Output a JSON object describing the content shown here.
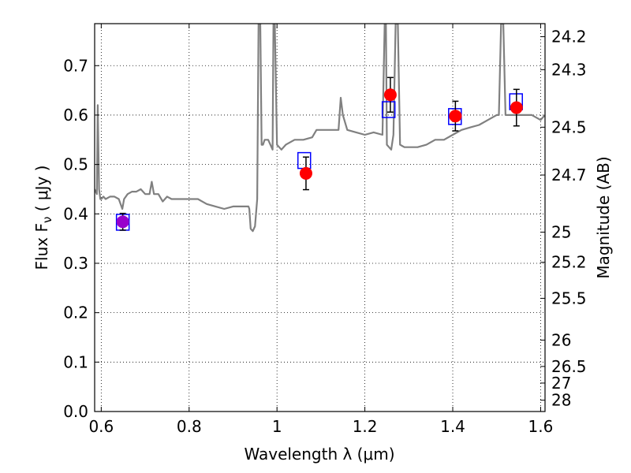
{
  "chart_data": {
    "type": "scatter",
    "title": "",
    "xlabel": "Wavelength  λ (μm)",
    "ylabel": "Flux  F_ν  ( μJy )",
    "ylabel_right": "Magnitude (AB)",
    "xlim": [
      0.585,
      1.61
    ],
    "ylim": [
      0.0,
      0.785
    ],
    "grid": true,
    "x_ticks": [
      0.6,
      0.8,
      1.0,
      1.2,
      1.4,
      1.6
    ],
    "x_tick_labels": [
      "0.6",
      "0.8",
      "1",
      "1.2",
      "1.4",
      "1.6"
    ],
    "y_ticks": [
      0.0,
      0.1,
      0.2,
      0.3,
      0.4,
      0.5,
      0.6,
      0.7
    ],
    "y_tick_labels": [
      "0.0",
      "0.1",
      "0.2",
      "0.3",
      "0.4",
      "0.5",
      "0.6",
      "0.7"
    ],
    "mag_ticks": [
      24.2,
      24.3,
      24.5,
      24.7,
      25,
      25.2,
      25.5,
      26,
      26.5,
      27,
      28
    ],
    "mag_tick_labels": [
      "24.2",
      "24.3",
      "24.5",
      "24.7",
      "25",
      "25.2",
      "25.5",
      "26",
      "26.5",
      "27",
      "28"
    ],
    "colors": {
      "spectrum": "#808080",
      "model_box": "#0000ff",
      "observed_point": "#ff0000",
      "observed_point_first": "#9900cc",
      "error_bar": "#000000",
      "grid": "#000000"
    },
    "spectrum": {
      "x": [
        0.585,
        0.59,
        0.592,
        0.595,
        0.598,
        0.6,
        0.605,
        0.61,
        0.62,
        0.63,
        0.64,
        0.648,
        0.652,
        0.66,
        0.67,
        0.68,
        0.69,
        0.7,
        0.71,
        0.715,
        0.72,
        0.73,
        0.74,
        0.75,
        0.76,
        0.78,
        0.8,
        0.82,
        0.84,
        0.86,
        0.88,
        0.9,
        0.92,
        0.93,
        0.935,
        0.937,
        0.94,
        0.945,
        0.95,
        0.955,
        0.958,
        0.962,
        0.965,
        0.968,
        0.972,
        0.975,
        0.98,
        0.99,
        0.992,
        0.995,
        1.0,
        1.005,
        1.01,
        1.02,
        1.03,
        1.04,
        1.06,
        1.08,
        1.09,
        1.1,
        1.12,
        1.13,
        1.14,
        1.145,
        1.15,
        1.16,
        1.18,
        1.2,
        1.22,
        1.24,
        1.245,
        1.248,
        1.25,
        1.255,
        1.26,
        1.265,
        1.27,
        1.275,
        1.28,
        1.29,
        1.3,
        1.32,
        1.34,
        1.36,
        1.38,
        1.4,
        1.42,
        1.44,
        1.46,
        1.48,
        1.5,
        1.505,
        1.51,
        1.515,
        1.52,
        1.54,
        1.56,
        1.58,
        1.6,
        1.61
      ],
      "y": [
        0.45,
        0.44,
        0.62,
        0.45,
        0.43,
        0.43,
        0.435,
        0.43,
        0.435,
        0.435,
        0.43,
        0.41,
        0.43,
        0.44,
        0.445,
        0.445,
        0.45,
        0.44,
        0.44,
        0.465,
        0.44,
        0.44,
        0.425,
        0.435,
        0.43,
        0.43,
        0.43,
        0.43,
        0.42,
        0.415,
        0.41,
        0.415,
        0.415,
        0.415,
        0.415,
        0.41,
        0.37,
        0.365,
        0.375,
        0.43,
        0.785,
        0.785,
        0.54,
        0.54,
        0.55,
        0.55,
        0.55,
        0.53,
        0.785,
        0.785,
        0.54,
        0.535,
        0.53,
        0.54,
        0.545,
        0.55,
        0.55,
        0.555,
        0.57,
        0.57,
        0.57,
        0.57,
        0.57,
        0.635,
        0.6,
        0.57,
        0.565,
        0.56,
        0.565,
        0.56,
        0.785,
        0.785,
        0.54,
        0.535,
        0.53,
        0.56,
        0.785,
        0.785,
        0.54,
        0.535,
        0.535,
        0.535,
        0.54,
        0.55,
        0.55,
        0.56,
        0.57,
        0.575,
        0.58,
        0.59,
        0.6,
        0.6,
        0.785,
        0.785,
        0.6,
        0.6,
        0.6,
        0.6,
        0.59,
        0.6
      ],
      "note_clipped": "values of 0.785 indicate emission lines extending above the top of the plot"
    },
    "model_boxes": {
      "x": [
        0.649,
        1.062,
        1.254,
        1.405,
        1.544
      ],
      "y": [
        0.383,
        0.508,
        0.611,
        0.597,
        0.627
      ]
    },
    "observed_points": {
      "x": [
        0.649,
        1.066,
        1.258,
        1.406,
        1.545
      ],
      "y": [
        0.384,
        0.482,
        0.641,
        0.598,
        0.615
      ],
      "yerr": [
        0.017,
        0.033,
        0.035,
        0.03,
        0.037
      ]
    }
  }
}
